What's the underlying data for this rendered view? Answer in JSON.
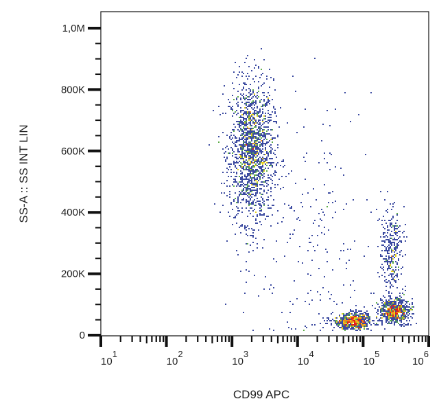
{
  "chart_data": {
    "type": "scatter",
    "subtype": "flow-cytometry density dot plot",
    "xlabel": "CD99 APC",
    "ylabel": "SS-A :: SS INT LIN",
    "x_scale": "log",
    "xlim": [
      10,
      1000000
    ],
    "ylim": [
      0,
      1050000
    ],
    "x_ticks": [
      {
        "base": "10",
        "exp": "1"
      },
      {
        "base": "10",
        "exp": "2"
      },
      {
        "base": "10",
        "exp": "3"
      },
      {
        "base": "10",
        "exp": "4"
      },
      {
        "base": "10",
        "exp": "5"
      },
      {
        "base": "10",
        "exp": "6"
      }
    ],
    "y_ticks": [
      {
        "value": 0,
        "label": "0"
      },
      {
        "value": 200000,
        "label": "200K"
      },
      {
        "value": 400000,
        "label": "400K"
      },
      {
        "value": 600000,
        "label": "600K"
      },
      {
        "value": 800000,
        "label": "800K"
      },
      {
        "value": 1000000,
        "label": "1,0M"
      }
    ],
    "grid": false,
    "density_colors": [
      "#3b4aa0",
      "#5fae4a",
      "#e8d21e",
      "#f08a1c",
      "#e0201c"
    ],
    "populations": [
      {
        "x_center": 2000,
        "x_log_sd": 0.17,
        "y_center": 600000,
        "y_sd": 115000,
        "events": 1700
      },
      {
        "x_center": 70000,
        "x_log_sd": 0.15,
        "y_center": 45000,
        "y_sd": 14000,
        "events": 650
      },
      {
        "x_center": 300000,
        "x_log_sd": 0.12,
        "y_center": 80000,
        "y_sd": 20000,
        "events": 650
      },
      {
        "x_center": 270000,
        "x_log_sd": 0.08,
        "y_center": 270000,
        "y_sd": 70000,
        "events": 320
      },
      {
        "x_center": 15000,
        "x_log_sd": 0.5,
        "y_center": 300000,
        "y_sd": 220000,
        "events": 220
      }
    ]
  }
}
